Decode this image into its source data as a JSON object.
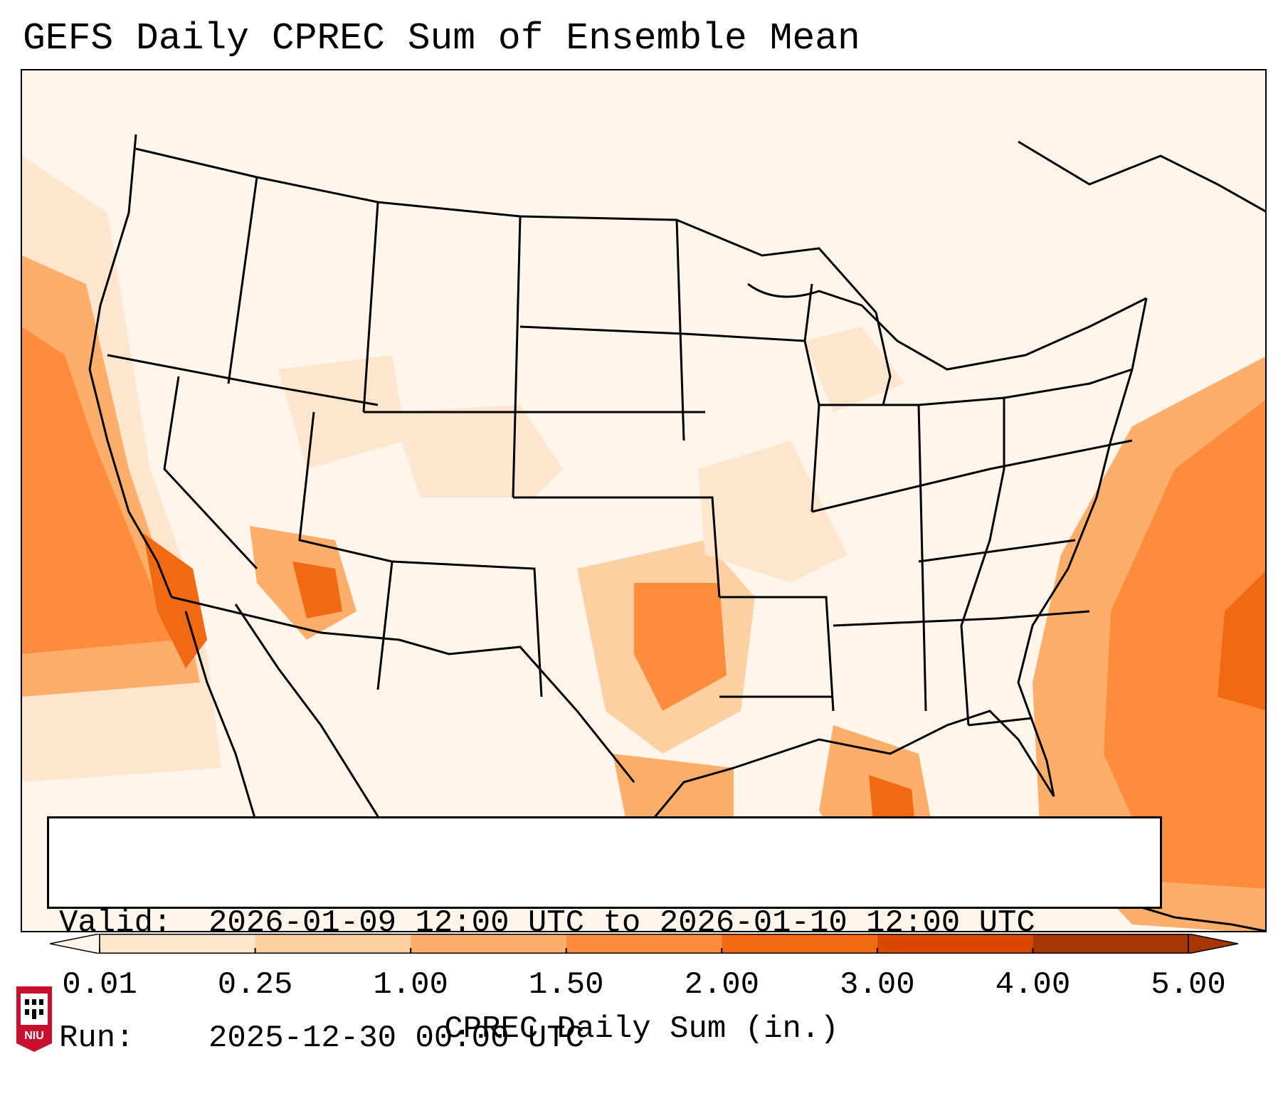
{
  "title": "GEFS Daily CPREC Sum of Ensemble Mean",
  "info": {
    "valid_key": "Valid:",
    "valid_value": "2026-01-09 12:00 UTC to 2026-01-10 12:00 UTC",
    "run_key": "Run:",
    "run_value": "2025-12-30 00:00 UTC"
  },
  "colorbar": {
    "label": "CPREC Daily Sum (in.)",
    "ticks": [
      "0.01",
      "0.25",
      "1.00",
      "1.50",
      "2.00",
      "3.00",
      "4.00",
      "5.00"
    ],
    "colors": [
      "#fff5eb",
      "#fee6ce",
      "#fdd0a2",
      "#fdae6b",
      "#fd8d3c",
      "#f16913",
      "#d94801",
      "#a63603"
    ],
    "extend": "both"
  },
  "logo": {
    "text": "NIU",
    "icon": "niu-logo-icon"
  },
  "map": {
    "projection": "CONUS Lambert conformal",
    "background_color": "#fff6ec",
    "boundary_color": "#000000"
  }
}
